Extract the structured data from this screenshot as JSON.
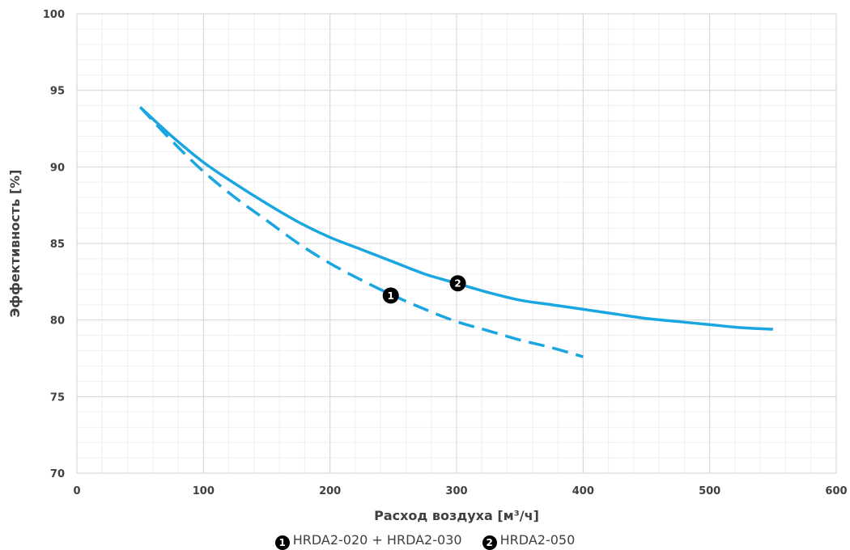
{
  "chart_data": {
    "type": "line",
    "title": "",
    "xlabel": "Расход воздуха [м³/ч]",
    "ylabel": "Эффективность  [%]",
    "xlim": [
      0,
      600
    ],
    "ylim": [
      70,
      100
    ],
    "x_ticks": [
      0,
      100,
      200,
      300,
      400,
      500,
      600
    ],
    "y_ticks": [
      70,
      75,
      80,
      85,
      90,
      95,
      100
    ],
    "grid": true,
    "minor_grid": true,
    "legend_position": "bottom-center",
    "series": [
      {
        "id": "s1",
        "marker_label": "1",
        "legend_label": "HRDA2-020 + HRDA2-030",
        "style": "dashed",
        "color": "#1aa6e0",
        "x": [
          50,
          75,
          100,
          125,
          150,
          175,
          200,
          225,
          250,
          275,
          300,
          325,
          350,
          375,
          400
        ],
        "y": [
          93.9,
          91.7,
          89.7,
          88.0,
          86.5,
          85.0,
          83.7,
          82.6,
          81.6,
          80.7,
          79.9,
          79.3,
          78.7,
          78.2,
          77.6
        ],
        "annotation": {
          "x": 248,
          "y": 81.6
        }
      },
      {
        "id": "s2",
        "marker_label": "2",
        "legend_label": "HRDA2-050",
        "style": "solid",
        "color": "#1aa6e0",
        "x": [
          50,
          75,
          100,
          125,
          150,
          175,
          200,
          225,
          250,
          275,
          300,
          325,
          350,
          375,
          400,
          425,
          450,
          475,
          500,
          525,
          550
        ],
        "y": [
          93.9,
          92.0,
          90.3,
          88.9,
          87.6,
          86.4,
          85.4,
          84.6,
          83.8,
          83.0,
          82.4,
          81.8,
          81.3,
          81.0,
          80.7,
          80.4,
          80.1,
          79.9,
          79.7,
          79.5,
          79.4
        ],
        "annotation": {
          "x": 301,
          "y": 82.4
        }
      }
    ]
  }
}
